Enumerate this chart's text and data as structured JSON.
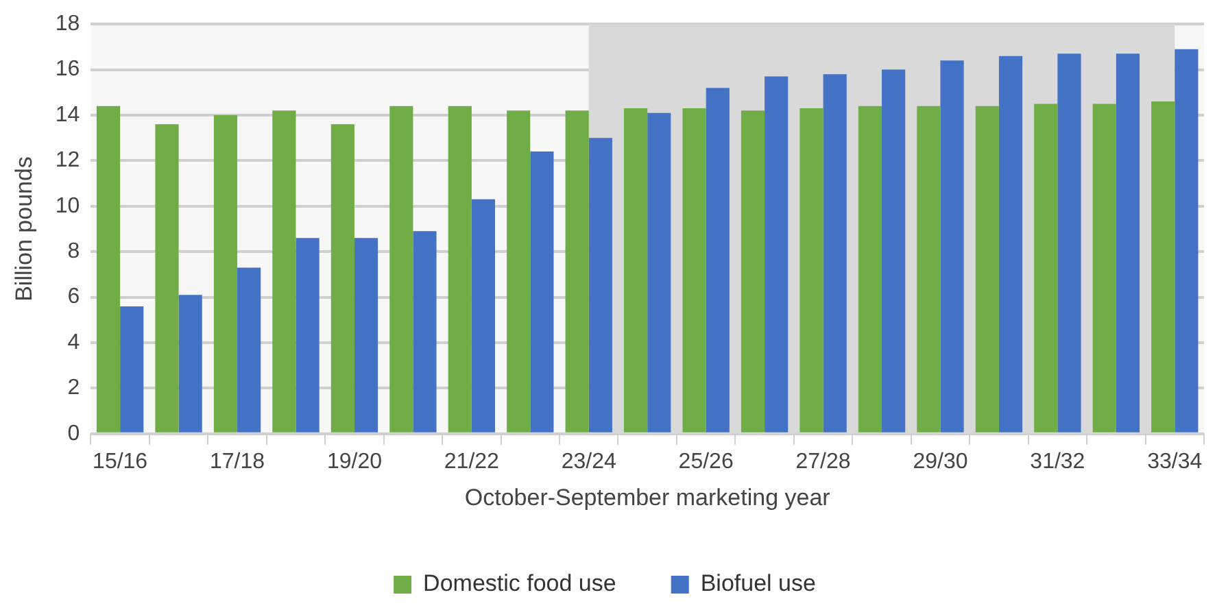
{
  "chart_data": {
    "type": "bar",
    "xlabel": "October-September marketing year",
    "ylabel": "Billion pounds",
    "categories": [
      "15/16",
      null,
      "17/18",
      null,
      "19/20",
      null,
      "21/22",
      null,
      "23/24",
      null,
      "25/26",
      null,
      "27/28",
      null,
      "29/30",
      null,
      "31/32",
      null,
      "33/34"
    ],
    "series": [
      {
        "name": "Domestic food use",
        "color": "#70ad47",
        "values": [
          14.4,
          13.6,
          14.0,
          14.2,
          13.6,
          14.4,
          14.4,
          14.2,
          14.2,
          14.3,
          14.3,
          14.2,
          14.3,
          14.4,
          14.4,
          14.4,
          14.5,
          14.5,
          14.6
        ]
      },
      {
        "name": "Biofuel use",
        "color": "#4472c4",
        "values": [
          5.6,
          6.1,
          7.3,
          8.6,
          8.6,
          8.9,
          10.3,
          12.4,
          13.0,
          14.1,
          15.2,
          15.7,
          15.8,
          16.0,
          16.4,
          16.6,
          16.7,
          16.7,
          16.9
        ]
      }
    ],
    "ylim": [
      0,
      18
    ],
    "yticks": [
      0,
      2,
      4,
      6,
      8,
      10,
      12,
      14,
      16,
      18
    ],
    "bands": [
      {
        "axis": "x",
        "from": "23/24",
        "to": "33/34",
        "color": "#d9d9d9"
      }
    ],
    "grid": "y",
    "legend": "bottom"
  }
}
